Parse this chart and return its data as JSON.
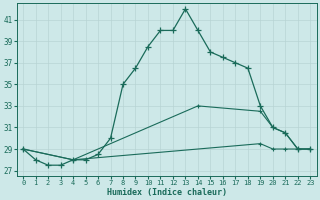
{
  "xlabel": "Humidex (Indice chaleur)",
  "background_color": "#cde8e8",
  "line_color": "#1a6b5a",
  "grid_color": "#b8d4d4",
  "xlim": [
    -0.5,
    23.5
  ],
  "ylim": [
    26.5,
    42.5
  ],
  "xticks": [
    0,
    1,
    2,
    3,
    4,
    5,
    6,
    7,
    8,
    9,
    10,
    11,
    12,
    13,
    14,
    15,
    16,
    17,
    18,
    19,
    20,
    21,
    22,
    23
  ],
  "yticks": [
    27,
    29,
    31,
    33,
    35,
    37,
    39,
    41
  ],
  "line1_x": [
    0,
    1,
    2,
    3,
    4,
    5,
    6,
    7,
    8,
    9,
    10,
    11,
    12,
    13,
    14,
    15,
    16,
    17,
    18,
    19,
    20,
    21,
    22,
    23
  ],
  "line1_y": [
    29,
    28,
    27.5,
    27.5,
    28,
    28,
    28.5,
    30,
    35,
    36.5,
    38.5,
    40,
    40,
    42.0,
    40,
    38,
    37.5,
    37,
    36.5,
    33,
    31,
    30.5,
    29,
    29
  ],
  "line2_x": [
    0,
    4,
    14,
    19,
    20,
    21,
    22,
    23
  ],
  "line2_y": [
    29,
    28,
    33,
    32.5,
    31,
    30.5,
    29,
    29
  ],
  "line3_x": [
    0,
    4,
    19,
    20,
    21,
    22,
    23
  ],
  "line3_y": [
    29,
    28,
    29.5,
    29,
    29,
    29,
    29
  ]
}
